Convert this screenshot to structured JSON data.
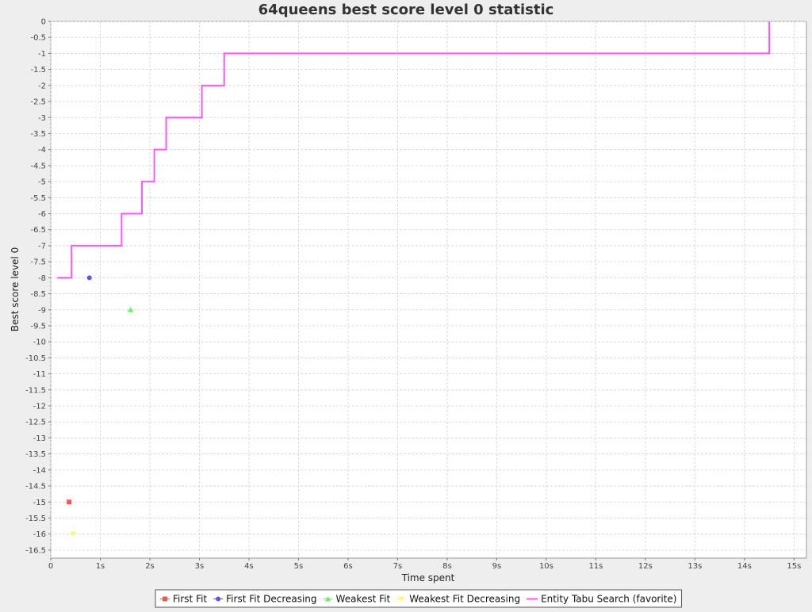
{
  "chart_data": {
    "type": "scatter",
    "title": "64queens best score level 0 statistic",
    "xlabel": "Time spent",
    "ylabel": "Best score level 0",
    "x_unit": "seconds",
    "xlim": [
      0,
      15.25
    ],
    "ylim": [
      -16.75,
      0
    ],
    "x_ticks": [
      0,
      1,
      2,
      3,
      4,
      5,
      6,
      7,
      8,
      9,
      10,
      11,
      12,
      13,
      14,
      15
    ],
    "x_tick_labels": [
      "0",
      "1s",
      "2s",
      "3s",
      "4s",
      "5s",
      "6s",
      "7s",
      "8s",
      "9s",
      "10s",
      "11s",
      "12s",
      "13s",
      "14s",
      "15s"
    ],
    "y_ticks": [
      0,
      -0.5,
      -1,
      -1.5,
      -2,
      -2.5,
      -3,
      -3.5,
      -4,
      -4.5,
      -5,
      -5.5,
      -6,
      -6.5,
      -7,
      -7.5,
      -8,
      -8.5,
      -9,
      -9.5,
      -10,
      -10.5,
      -11,
      -11.5,
      -12,
      -12.5,
      -13,
      -13.5,
      -14,
      -14.5,
      -15,
      -15.5,
      -16,
      -16.5
    ],
    "y_tick_labels": [
      "0",
      "-0.5",
      "-1",
      "-1.5",
      "-2",
      "-2.5",
      "-3",
      "-3.5",
      "-4",
      "-4.5",
      "-5",
      "-5.5",
      "-6",
      "-6.5",
      "-7",
      "-7.5",
      "-8",
      "-8.5",
      "-9",
      "-9.5",
      "-10",
      "-10.5",
      "-11",
      "-11.5",
      "-12",
      "-12.5",
      "-13",
      "-13.5",
      "-14",
      "-14.5",
      "-15",
      "-15.5",
      "-16",
      "-16.5"
    ],
    "grid": true,
    "legend_position": "bottom",
    "series": [
      {
        "name": "First Fit",
        "color": "#ff5555",
        "marker": "square",
        "style": "point",
        "points": [
          [
            0.37,
            -15
          ]
        ]
      },
      {
        "name": "First Fit Decreasing",
        "color": "#5555ff",
        "marker": "circle",
        "style": "point",
        "points": [
          [
            0.78,
            -8
          ]
        ]
      },
      {
        "name": "Weakest Fit",
        "color": "#55ff55",
        "marker": "triangle-up",
        "style": "point",
        "points": [
          [
            1.61,
            -9
          ]
        ]
      },
      {
        "name": "Weakest Fit Decreasing",
        "color": "#ffff55",
        "marker": "triangle-down",
        "style": "point",
        "points": [
          [
            0.45,
            -16
          ]
        ]
      },
      {
        "name": "Entity Tabu Search (favorite)",
        "color": "#ff55ff",
        "marker": "none",
        "style": "step",
        "points": [
          [
            0.13,
            -8
          ],
          [
            0.42,
            -7
          ],
          [
            1.43,
            -6
          ],
          [
            1.84,
            -5
          ],
          [
            2.09,
            -4
          ],
          [
            2.33,
            -3
          ],
          [
            3.05,
            -2
          ],
          [
            3.5,
            -1
          ],
          [
            14.5,
            0
          ]
        ]
      }
    ]
  }
}
